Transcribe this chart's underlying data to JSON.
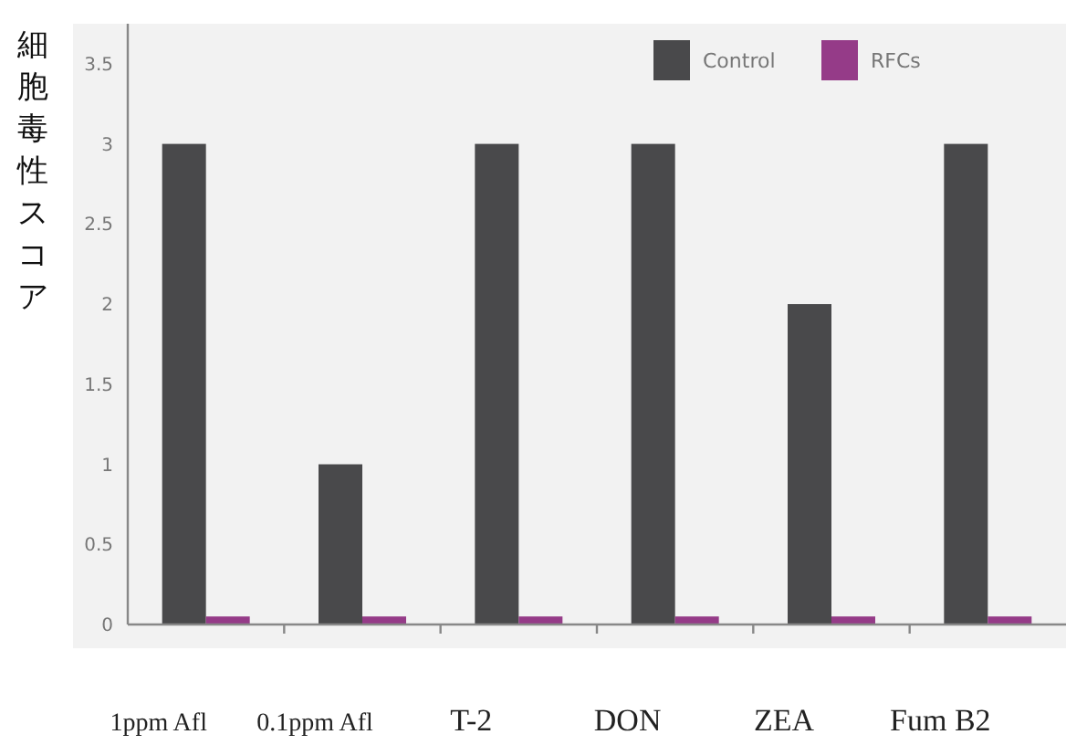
{
  "chart_data": {
    "type": "bar",
    "ylabel": "細胞毒性スコア",
    "categories": [
      "1ppm Afl",
      "0.1ppm Afl",
      "T-2",
      "DON",
      "ZEA",
      "Fum B2"
    ],
    "series": [
      {
        "name": "Control",
        "color": "#49494b",
        "values": [
          3,
          1,
          3,
          3,
          2,
          3
        ]
      },
      {
        "name": "RFCs",
        "color": "#953b88",
        "values": [
          0.05,
          0.05,
          0.05,
          0.05,
          0.05,
          0.05
        ]
      }
    ],
    "ylim": [
      0,
      3.75
    ],
    "yticks": [
      0,
      0.5,
      1,
      1.5,
      2,
      2.5,
      3,
      3.5
    ],
    "legend": "top right"
  }
}
